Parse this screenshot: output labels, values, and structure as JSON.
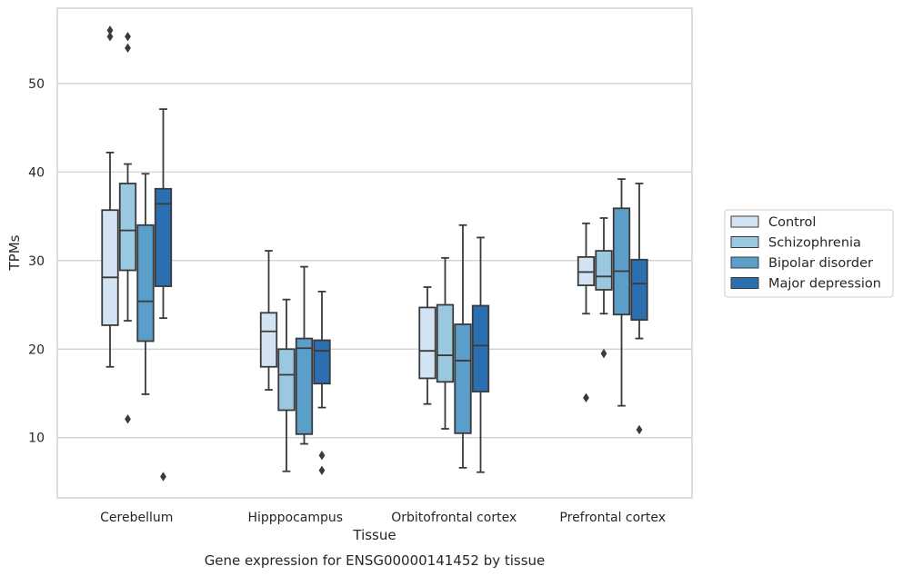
{
  "chart_data": {
    "type": "box",
    "xlabel": "Tissue",
    "ylabel": "TPMs",
    "caption": "Gene expression for ENSG00000141452 by tissue",
    "categories": [
      "Cerebellum",
      "Hipppocampus",
      "Orbitofrontal cortex",
      "Prefrontal cortex"
    ],
    "y_ticks": [
      10,
      20,
      30,
      40,
      50
    ],
    "ylim": [
      3.2,
      58.5
    ],
    "grid": "horizontal",
    "legend_position": "right",
    "series": [
      {
        "name": "Control",
        "color": "#d2e3f3",
        "boxes": [
          {
            "whislo": 18.0,
            "q1": 22.7,
            "med": 28.1,
            "q3": 35.7,
            "whishi": 42.2,
            "fliers": []
          },
          {
            "whislo": 15.4,
            "q1": 18.0,
            "med": 22.0,
            "q3": 24.1,
            "whishi": 31.1,
            "fliers": []
          },
          {
            "whislo": 13.8,
            "q1": 16.7,
            "med": 19.8,
            "q3": 24.7,
            "whishi": 27.0,
            "fliers": []
          },
          {
            "whislo": 24.0,
            "q1": 27.2,
            "med": 28.7,
            "q3": 30.4,
            "whishi": 34.2,
            "fliers": [
              14.5
            ]
          }
        ]
      },
      {
        "name": "Schizophrenia",
        "color": "#9ac8e0",
        "boxes": [
          {
            "whislo": 23.2,
            "q1": 28.9,
            "med": 33.4,
            "q3": 38.7,
            "whishi": 40.9,
            "fliers": [
              55.3,
              54.0,
              12.1
            ]
          },
          {
            "whislo": 6.2,
            "q1": 13.1,
            "med": 17.1,
            "q3": 20.0,
            "whishi": 25.6,
            "fliers": []
          },
          {
            "whislo": 11.0,
            "q1": 16.3,
            "med": 19.3,
            "q3": 25.0,
            "whishi": 30.3,
            "fliers": []
          },
          {
            "whislo": 24.0,
            "q1": 26.7,
            "med": 28.2,
            "q3": 31.1,
            "whishi": 34.8,
            "fliers": [
              19.5
            ]
          }
        ]
      },
      {
        "name": "Bipolar disorder",
        "color": "#5a9ec9",
        "boxes": [
          {
            "whislo": 14.9,
            "q1": 20.9,
            "med": 25.4,
            "q3": 34.0,
            "whishi": 39.8,
            "fliers": []
          },
          {
            "whislo": 9.3,
            "q1": 10.4,
            "med": 20.1,
            "q3": 21.2,
            "whishi": 29.3,
            "fliers": []
          },
          {
            "whislo": 6.6,
            "q1": 10.5,
            "med": 18.7,
            "q3": 22.8,
            "whishi": 34.0,
            "fliers": []
          },
          {
            "whislo": 13.6,
            "q1": 23.9,
            "med": 28.8,
            "q3": 35.9,
            "whishi": 39.2,
            "fliers": []
          }
        ]
      },
      {
        "name": "Major depression",
        "color": "#2c6fb0",
        "boxes": [
          {
            "whislo": 23.5,
            "q1": 27.1,
            "med": 36.4,
            "q3": 38.1,
            "whishi": 47.1,
            "fliers": [
              5.6
            ]
          },
          {
            "whislo": 13.4,
            "q1": 16.1,
            "med": 19.8,
            "q3": 21.0,
            "whishi": 26.5,
            "fliers": [
              8.0,
              6.3
            ]
          },
          {
            "whislo": 6.1,
            "q1": 15.2,
            "med": 20.4,
            "q3": 24.9,
            "whishi": 32.6,
            "fliers": []
          },
          {
            "whislo": 21.2,
            "q1": 23.3,
            "med": 27.4,
            "q3": 30.1,
            "whishi": 38.7,
            "fliers": [
              10.9
            ]
          }
        ]
      }
    ],
    "extra_fliers_cerebellum_control": [
      56.0,
      55.3
    ]
  }
}
